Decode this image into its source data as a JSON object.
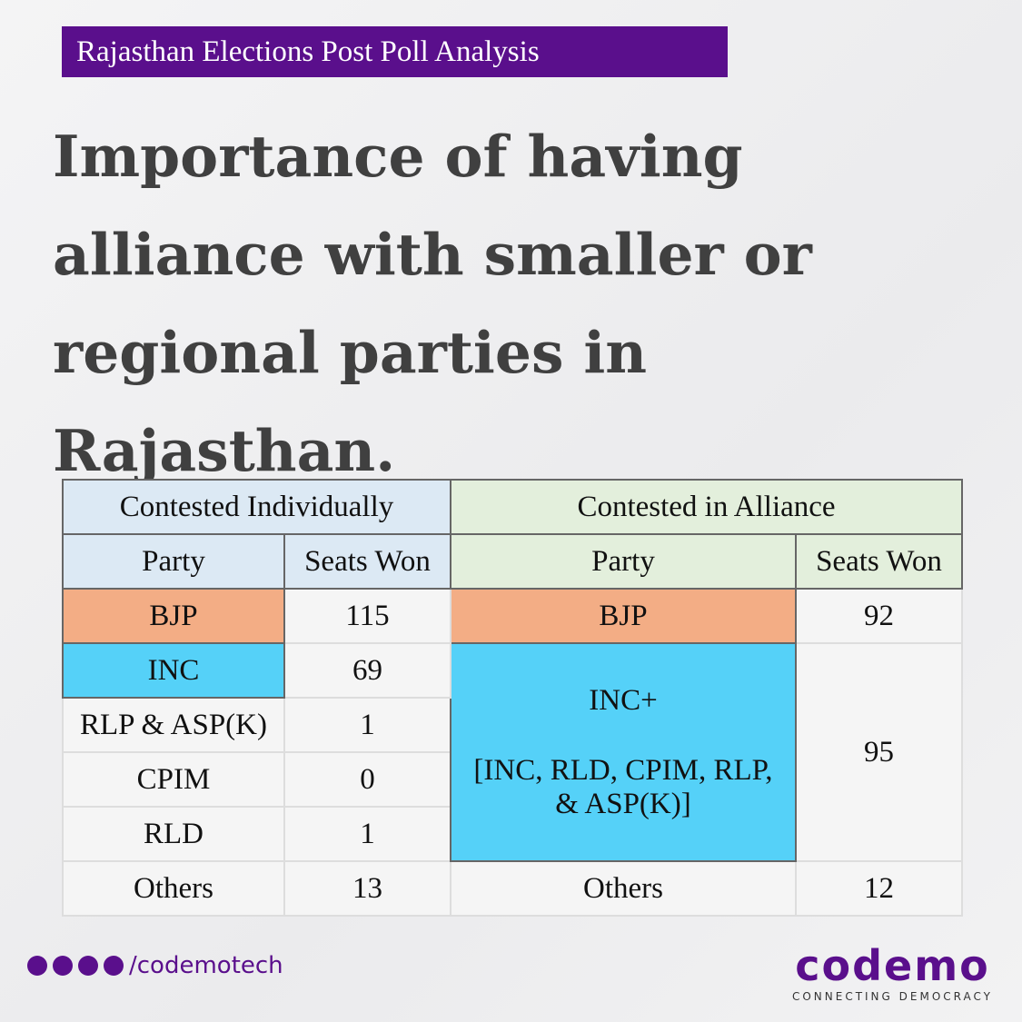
{
  "header": {
    "label": "Rajasthan Elections Post Poll Analysis"
  },
  "title": [
    "Importance of having",
    "alliance with smaller or",
    "regional parties in",
    "Rajasthan."
  ],
  "table": {
    "left": {
      "heading": "Contested Individually",
      "columns": [
        "Party",
        "Seats Won"
      ],
      "rows": [
        [
          "BJP",
          115
        ],
        [
          "INC",
          69
        ],
        [
          "RLP & ASP(K)",
          1
        ],
        [
          "CPIM",
          0
        ],
        [
          "RLD",
          1
        ],
        [
          "Others",
          13
        ]
      ]
    },
    "right": {
      "heading": "Contested in Alliance",
      "columns": [
        "Party",
        "Seats Won"
      ],
      "rows": [
        [
          "BJP",
          92
        ],
        [
          "INC+",
          95,
          "[INC, RLD, CPIM, RLP, & ASP(K)]"
        ],
        [
          "Others",
          12
        ]
      ]
    }
  },
  "footer": {
    "handle": "/codemotech",
    "brand": "codemo",
    "tagline": "CONNECTING DEMOCRACY"
  }
}
